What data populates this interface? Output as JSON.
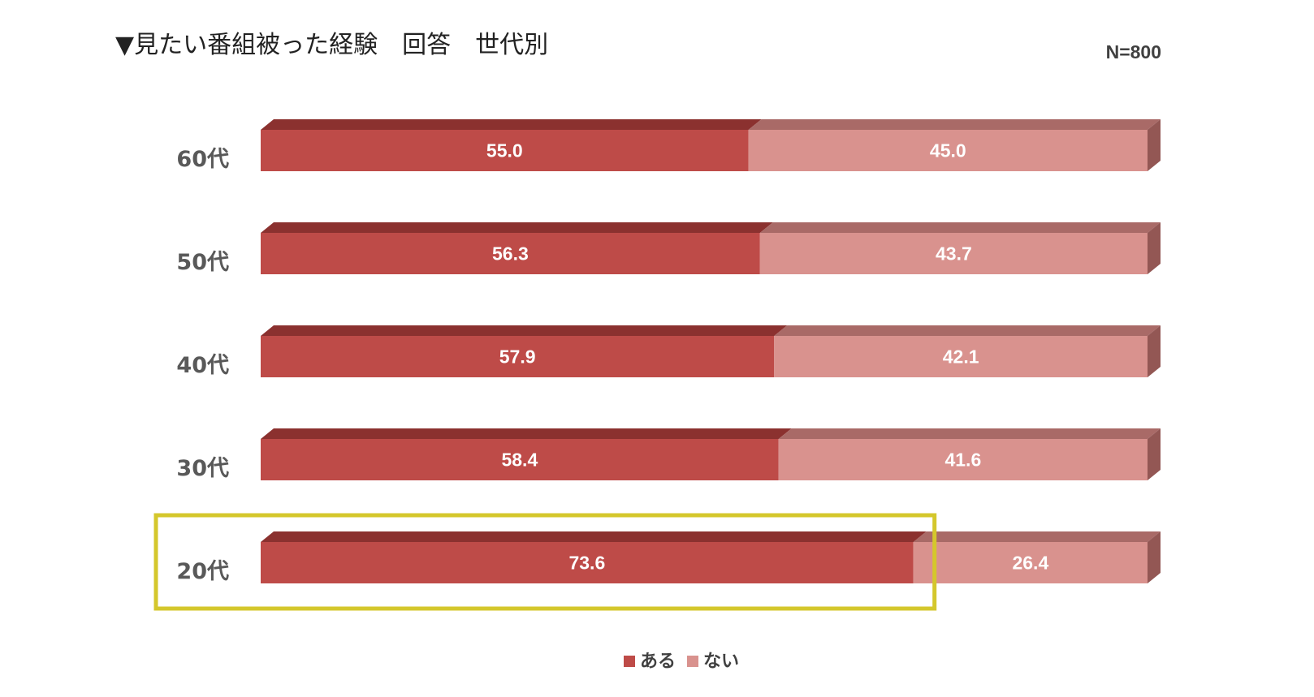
{
  "header": {
    "title": "▼見たい番組被った経験　回答　世代別",
    "sample_size": "N=800"
  },
  "chart_data": {
    "type": "bar",
    "orientation": "horizontal",
    "stacked": true,
    "style": "3d",
    "categories": [
      "60代",
      "50代",
      "40代",
      "30代",
      "20代"
    ],
    "series": [
      {
        "name": "ある",
        "color": "#be4b48",
        "top_color": "#8b312f",
        "values": [
          55.0,
          56.3,
          57.9,
          58.4,
          73.6
        ],
        "labels": [
          "55.0",
          "56.3",
          "57.9",
          "58.4",
          "73.6"
        ]
      },
      {
        "name": "ない",
        "color": "#d9928e",
        "top_color": "#a96a67",
        "side_color": "#935754",
        "values": [
          45.0,
          43.7,
          42.1,
          41.6,
          26.4
        ],
        "labels": [
          "45.0",
          "43.7",
          "42.1",
          "41.6",
          "26.4"
        ]
      }
    ],
    "xlim": [
      0,
      100
    ],
    "grid": false,
    "legend_position": "bottom-center",
    "highlight": {
      "category": "20代",
      "series": "ある",
      "color": "#d4c72c"
    }
  }
}
